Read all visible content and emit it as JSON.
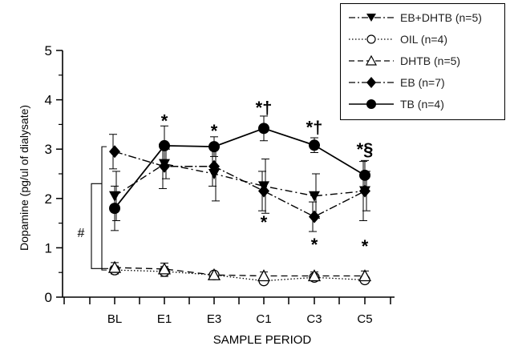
{
  "chart_data": {
    "type": "line",
    "xlabel": "SAMPLE PERIOD",
    "ylabel": "Dopamine (pg/ul of dialysate)",
    "categories": [
      "BL",
      "E1",
      "E3",
      "C1",
      "C3",
      "C5"
    ],
    "ylim": [
      0,
      5
    ],
    "yticks": [
      "0",
      "1",
      "2",
      "3",
      "4",
      "5"
    ],
    "legend_position": "top-right",
    "series": [
      {
        "name": "EB+DHTB (n=5)",
        "marker": "filled-down-triangle",
        "line": "dash-dot",
        "values": [
          2.05,
          2.7,
          2.5,
          2.25,
          2.05,
          2.15
        ],
        "err": [
          0.5,
          0.3,
          0.55,
          0.55,
          0.45,
          0.4
        ]
      },
      {
        "name": "OIL (n=4)",
        "marker": "open-circle",
        "line": "dotted",
        "values": [
          0.55,
          0.52,
          0.45,
          0.33,
          0.4,
          0.35
        ],
        "err": [
          0.08,
          0.1,
          0.05,
          0.06,
          0.07,
          0.07
        ]
      },
      {
        "name": "DHTB (n=5)",
        "marker": "open-up-triangle",
        "line": "dashed",
        "values": [
          0.6,
          0.57,
          0.45,
          0.43,
          0.43,
          0.43
        ],
        "err": [
          0.1,
          0.12,
          0.05,
          0.08,
          0.08,
          0.1
        ]
      },
      {
        "name": "EB (n=7)",
        "marker": "filled-diamond",
        "line": "dash-dot",
        "values": [
          2.95,
          2.65,
          2.65,
          2.15,
          1.63,
          2.15
        ],
        "err": [
          0.35,
          0.45,
          0.4,
          0.4,
          0.3,
          0.6
        ]
      },
      {
        "name": "TB (n=4)",
        "marker": "filled-circle",
        "line": "solid",
        "values": [
          1.8,
          3.07,
          3.05,
          3.42,
          3.08,
          2.47
        ],
        "err": [
          0.45,
          0.4,
          0.2,
          0.25,
          0.15,
          0.3
        ]
      }
    ],
    "annotations": [
      {
        "text": "*",
        "x": "E1",
        "y": 3.58
      },
      {
        "text": "*",
        "x": "E3",
        "y": 3.38
      },
      {
        "text": "*†",
        "x": "C1",
        "y": 3.85
      },
      {
        "text": "*†",
        "x": "C3",
        "y": 3.45
      },
      {
        "text": "*§",
        "x": "C5",
        "y": 3.0
      },
      {
        "text": "*",
        "x": "C1",
        "y": 1.53
      },
      {
        "text": "*",
        "x": "C3",
        "y": 1.07
      },
      {
        "text": "*",
        "x": "C5",
        "y": 1.04
      },
      {
        "text": "#",
        "x": "left-bracket",
        "y": 1.35
      }
    ]
  }
}
